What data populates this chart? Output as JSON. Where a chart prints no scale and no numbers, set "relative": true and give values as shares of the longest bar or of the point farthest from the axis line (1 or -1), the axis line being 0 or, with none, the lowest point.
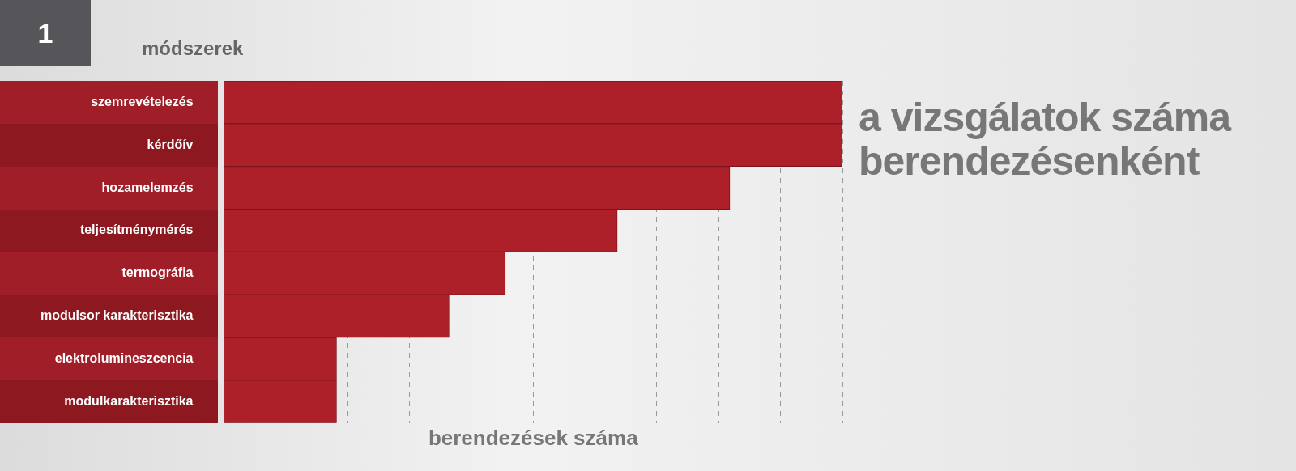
{
  "chart_data": {
    "type": "bar",
    "orientation": "horizontal",
    "relative": true,
    "title": "a vizsgálatok száma berendezésenként",
    "ylabel": "módszerek",
    "xlabel": "berendezések száma",
    "annotations": [
      "1"
    ],
    "categories": [
      "szemrevételezés",
      "kérdőív",
      "hozamelemzés",
      "teljesítménymérés",
      "termográfia",
      "modulsor karakterisztika",
      "elektrolumineszcencia",
      "modulkarakterisztika"
    ],
    "values": [
      1,
      1,
      0.818,
      0.636,
      0.455,
      0.364,
      0.182,
      0.182
    ],
    "color": "#ad2029",
    "grid": "x"
  }
}
